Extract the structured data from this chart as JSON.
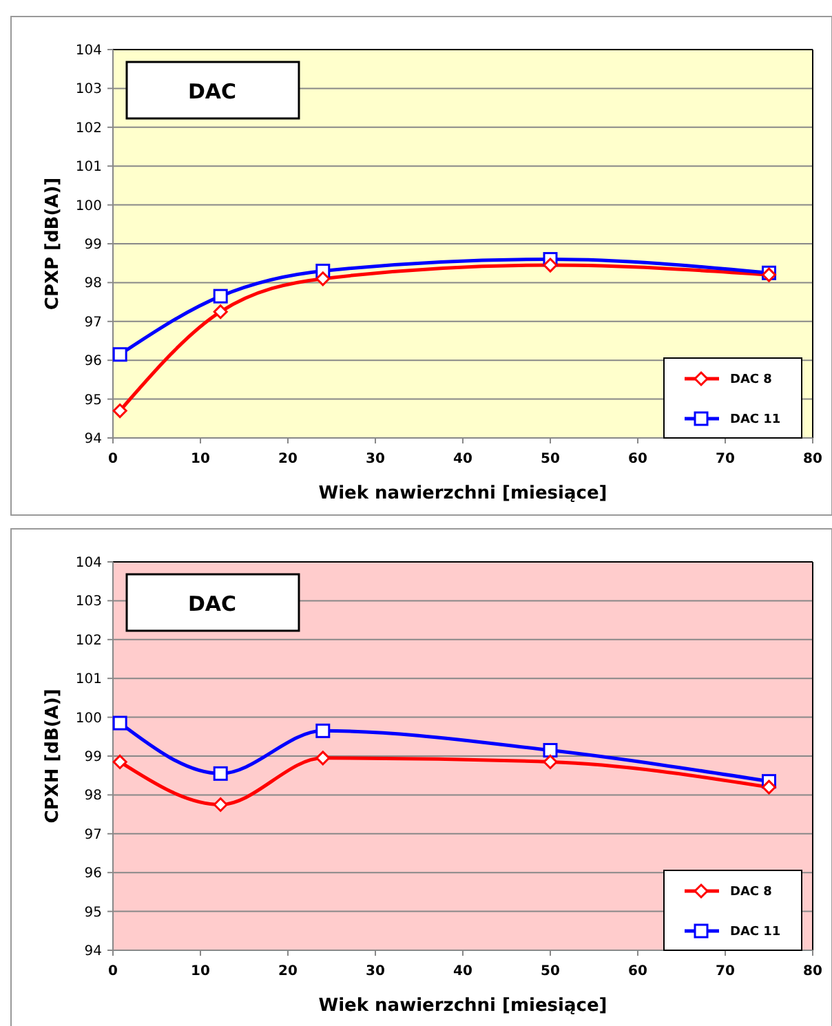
{
  "chart_data": [
    {
      "type": "line",
      "title": "DAC",
      "xlabel": "Wiek nawierzchni  [miesiące]",
      "ylabel": "CPXP  [dB(A)]",
      "xlim": [
        0,
        80
      ],
      "xticks": [
        0,
        10,
        20,
        30,
        40,
        50,
        60,
        70,
        80
      ],
      "ylim": [
        94,
        104
      ],
      "yticks": [
        94,
        95,
        96,
        97,
        98,
        99,
        100,
        101,
        102,
        103,
        104
      ],
      "grid": "y",
      "legend": "bottom right",
      "line_style": "solid",
      "series": [
        {
          "name": "DAC 8",
          "color": "#ff0000",
          "marker": "diamond",
          "x": [
            0.8,
            12.3,
            24,
            50,
            75
          ],
          "values": [
            94.7,
            97.25,
            98.1,
            98.45,
            98.2
          ]
        },
        {
          "name": "DAC 11",
          "color": "#0000ff",
          "marker": "square",
          "x": [
            0.8,
            12.3,
            24,
            50,
            75
          ],
          "values": [
            96.15,
            97.65,
            98.3,
            98.6,
            98.25
          ]
        }
      ]
    },
    {
      "type": "line",
      "title": "DAC",
      "xlabel": "Wiek nawierzchni  [miesiące]",
      "ylabel": "CPXH  [dB(A)]",
      "xlim": [
        0,
        80
      ],
      "xticks": [
        0,
        10,
        20,
        30,
        40,
        50,
        60,
        70,
        80
      ],
      "ylim": [
        94,
        104
      ],
      "yticks": [
        94,
        95,
        96,
        97,
        98,
        99,
        100,
        101,
        102,
        103,
        104
      ],
      "grid": "y",
      "legend": "bottom right",
      "line_style": "solid",
      "series": [
        {
          "name": "DAC 8",
          "color": "#ff0000",
          "marker": "diamond",
          "x": [
            0.8,
            12.3,
            24,
            50,
            75
          ],
          "values": [
            98.85,
            97.75,
            98.95,
            98.85,
            98.2
          ]
        },
        {
          "name": "DAC 11",
          "color": "#0000ff",
          "marker": "square",
          "x": [
            0.8,
            12.3,
            24,
            50,
            75
          ],
          "values": [
            99.85,
            98.55,
            99.65,
            99.15,
            98.35
          ]
        }
      ]
    }
  ]
}
